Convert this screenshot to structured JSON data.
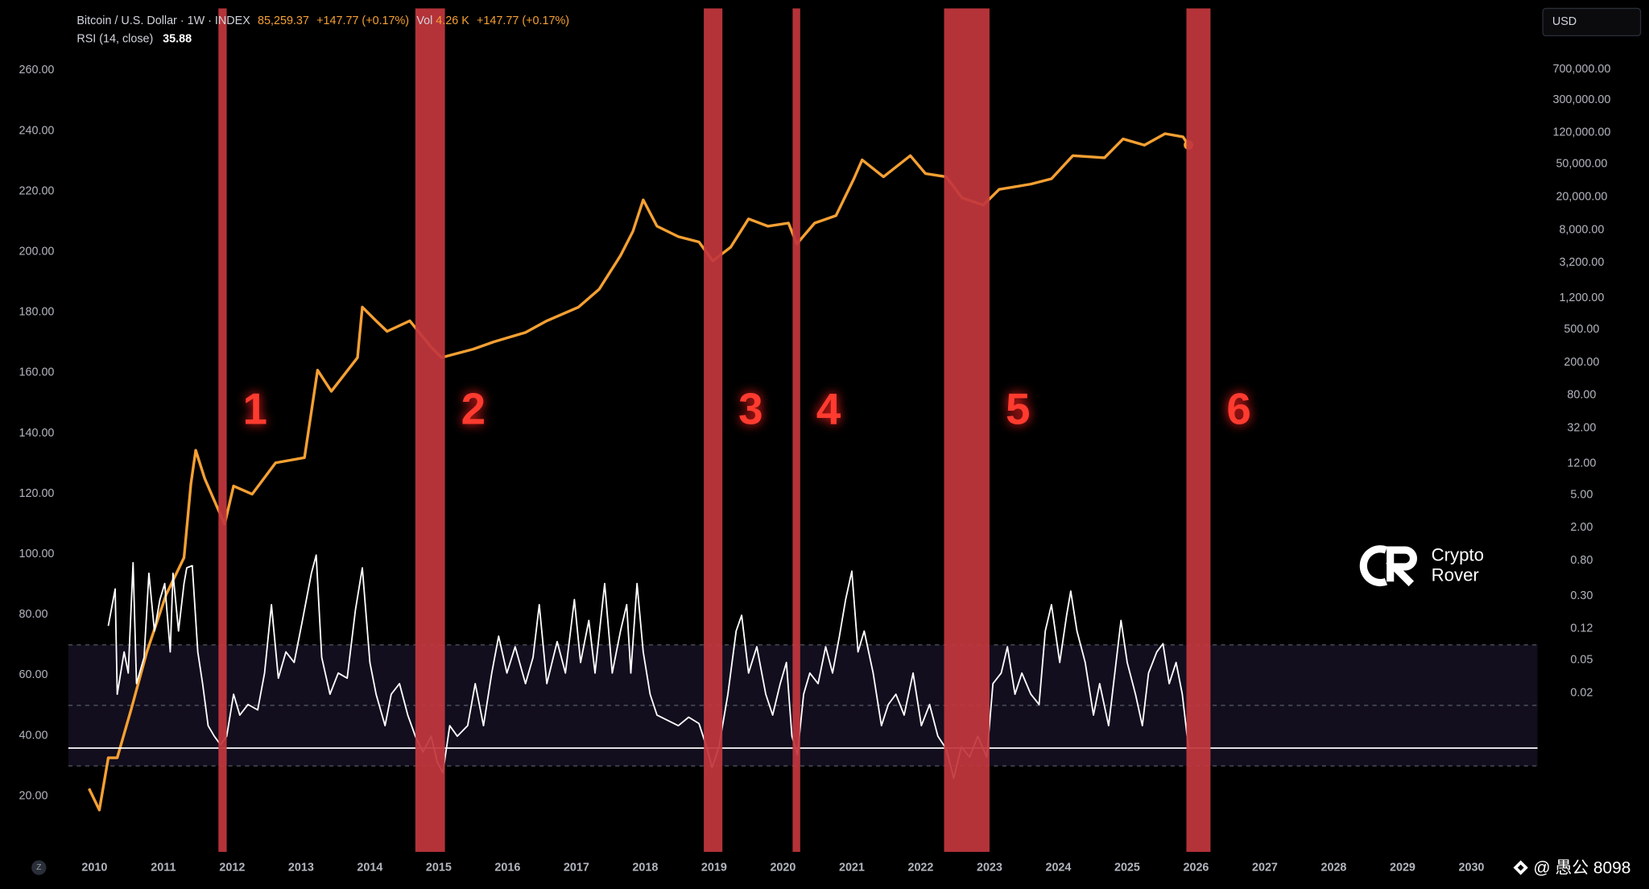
{
  "chart_data": {
    "type": "line",
    "header": {
      "price": "85,259.37",
      "change": "+147.77 (+0.17%)",
      "volume_label": "Vol",
      "volume": "4.26 K",
      "volume_change": "+147.77 (+0.17%)"
    },
    "currency": "USD",
    "logo": [
      "Crypto",
      "Rover"
    ],
    "corner_icon": "Z",
    "watermark": "@ 愚公 8098",
    "xlim": [
      2009.62,
      2030.96
    ],
    "xticks": [
      2010,
      2011,
      2012,
      2013,
      2014,
      2015,
      2016,
      2017,
      2018,
      2019,
      2020,
      2021,
      2022,
      2023,
      2024,
      2025,
      2026,
      2027,
      2028,
      2029,
      2030
    ],
    "ylim": [
      1.56,
      280.5
    ],
    "yticks": [
      {
        "value": 20,
        "label": "20.00"
      },
      {
        "value": 40,
        "label": "40.00"
      },
      {
        "value": 60,
        "label": "60.00"
      },
      {
        "value": 80,
        "label": "80.00"
      },
      {
        "value": 100,
        "label": "100.00"
      },
      {
        "value": 120,
        "label": "120.00"
      },
      {
        "value": 140,
        "label": "140.00"
      },
      {
        "value": 160,
        "label": "160.00"
      },
      {
        "value": 180,
        "label": "180.00"
      },
      {
        "value": 200,
        "label": "200.00"
      },
      {
        "value": 220,
        "label": "220.00"
      },
      {
        "value": 240,
        "label": "240.00"
      },
      {
        "value": 260,
        "label": "260.00"
      }
    ],
    "y2log": true,
    "y2lim": [
      0.00024,
      3830000
    ],
    "y2ticks": [
      {
        "value": 700000,
        "label": "700,000.00"
      },
      {
        "value": 300000,
        "label": "300,000.00"
      },
      {
        "value": 120000,
        "label": "120,000.00"
      },
      {
        "value": 50000,
        "label": "50,000.00"
      },
      {
        "value": 20000,
        "label": "20,000.00"
      },
      {
        "value": 8000,
        "label": "8,000.00"
      },
      {
        "value": 3200,
        "label": "3,200.00"
      },
      {
        "value": 1200,
        "label": "1,200.00"
      },
      {
        "value": 500,
        "label": "500.00"
      },
      {
        "value": 200,
        "label": "200.00"
      },
      {
        "value": 80,
        "label": "80.00"
      },
      {
        "value": 32,
        "label": "32.00"
      },
      {
        "value": 12,
        "label": "12.00"
      },
      {
        "value": 5,
        "label": "5.00"
      },
      {
        "value": 2,
        "label": "2.00"
      },
      {
        "value": 0.8,
        "label": "0.80"
      },
      {
        "value": 0.3,
        "label": "0.30"
      },
      {
        "value": 0.12,
        "label": "0.12"
      },
      {
        "value": 0.05,
        "label": "0.05"
      },
      {
        "value": 0.02,
        "label": "0.02"
      }
    ],
    "rsi_levels": [
      70,
      50,
      30
    ],
    "bands": [
      {
        "label": "1",
        "x": [
          2011.8,
          2011.92
        ]
      },
      {
        "label": "2",
        "x": [
          2014.66,
          2015.09
        ]
      },
      {
        "label": "3",
        "x": [
          2018.85,
          2019.12
        ]
      },
      {
        "label": "4",
        "x": [
          2020.14,
          2020.25
        ]
      },
      {
        "label": "5",
        "x": [
          2022.34,
          2023.0
        ]
      },
      {
        "label": "6",
        "x": [
          2025.86,
          2026.21
        ]
      }
    ],
    "series": [
      {
        "name": "Bitcoin / U.S. Dollar · 1W · INDEX",
        "color": "#f5a033",
        "axis": "y2",
        "x": [
          2009.92,
          2010.07,
          2010.2,
          2010.33,
          2010.53,
          2010.76,
          2011.04,
          2011.3,
          2011.4,
          2011.47,
          2011.6,
          2011.89,
          2012.02,
          2012.29,
          2012.63,
          2013.05,
          2013.24,
          2013.44,
          2013.82,
          2013.89,
          2014.09,
          2014.25,
          2014.58,
          2014.89,
          2015.04,
          2015.5,
          2015.8,
          2016.26,
          2016.57,
          2017.03,
          2017.33,
          2017.64,
          2017.82,
          2017.97,
          2018.17,
          2018.48,
          2018.78,
          2018.98,
          2019.24,
          2019.5,
          2019.78,
          2020.08,
          2020.2,
          2020.46,
          2020.77,
          2021.03,
          2021.15,
          2021.46,
          2021.85,
          2022.07,
          2022.37,
          2022.6,
          2022.91,
          2023.14,
          2023.6,
          2023.9,
          2024.21,
          2024.67,
          2024.94,
          2025.25,
          2025.55,
          2025.81,
          2025.89
        ],
        "values": [
          0.0014,
          0.00077,
          0.0033,
          0.0033,
          0.0125,
          0.063,
          0.31,
          0.87,
          6.8,
          17.3,
          7.9,
          2.2,
          6.4,
          5.1,
          12.2,
          14.1,
          161,
          89.5,
          229,
          933,
          637,
          475,
          637,
          306,
          229,
          289,
          355,
          461,
          637,
          933,
          1535,
          3917,
          7690,
          18500,
          8890,
          6640,
          5730,
          3380,
          4950,
          10900,
          8890,
          9700,
          5410,
          9700,
          11940,
          33300,
          56400,
          35200,
          63400,
          38500,
          35200,
          19600,
          16000,
          24800,
          28700,
          33300,
          63400,
          59700,
          101000,
          84900,
          117000,
          107000,
          85259.37
        ]
      },
      {
        "name": "RSI (14, close)",
        "color": "#ffffff",
        "x": [
          2010.2,
          2010.3,
          2010.33,
          2010.43,
          2010.49,
          2010.56,
          2010.61,
          2010.72,
          2010.79,
          2010.87,
          2010.95,
          2011.02,
          2011.1,
          2011.14,
          2011.22,
          2011.3,
          2011.34,
          2011.42,
          2011.5,
          2011.57,
          2011.65,
          2011.74,
          2011.83,
          2011.92,
          2012.02,
          2012.11,
          2012.23,
          2012.37,
          2012.47,
          2012.57,
          2012.67,
          2012.78,
          2012.9,
          2013.02,
          2013.15,
          2013.22,
          2013.3,
          2013.42,
          2013.54,
          2013.67,
          2013.79,
          2013.89,
          2014.0,
          2014.09,
          2014.22,
          2014.31,
          2014.43,
          2014.55,
          2014.66,
          2014.77,
          2014.89,
          2014.98,
          2015.06,
          2015.16,
          2015.27,
          2015.42,
          2015.53,
          2015.65,
          2015.77,
          2015.87,
          2015.99,
          2016.11,
          2016.26,
          2016.37,
          2016.46,
          2016.57,
          2016.72,
          2016.84,
          2016.97,
          2017.06,
          2017.18,
          2017.27,
          2017.41,
          2017.52,
          2017.64,
          2017.73,
          2017.79,
          2017.88,
          2017.97,
          2018.07,
          2018.17,
          2018.33,
          2018.48,
          2018.63,
          2018.78,
          2018.89,
          2018.97,
          2019.07,
          2019.2,
          2019.32,
          2019.4,
          2019.5,
          2019.62,
          2019.75,
          2019.85,
          2019.96,
          2020.05,
          2020.13,
          2020.21,
          2020.3,
          2020.39,
          2020.51,
          2020.62,
          2020.72,
          2020.82,
          2020.91,
          2021.0,
          2021.09,
          2021.18,
          2021.31,
          2021.43,
          2021.53,
          2021.64,
          2021.76,
          2021.89,
          2022.01,
          2022.13,
          2022.25,
          2022.37,
          2022.48,
          2022.59,
          2022.71,
          2022.83,
          2022.96,
          2023.05,
          2023.17,
          2023.26,
          2023.37,
          2023.47,
          2023.6,
          2023.72,
          2023.81,
          2023.9,
          2024.02,
          2024.12,
          2024.18,
          2024.27,
          2024.39,
          2024.51,
          2024.6,
          2024.73,
          2024.82,
          2024.91,
          2025.0,
          2025.12,
          2025.22,
          2025.31,
          2025.43,
          2025.52,
          2025.61,
          2025.71,
          2025.8,
          2025.89
        ],
        "values": [
          76.3,
          88.5,
          53.7,
          67.7,
          60.7,
          97.2,
          57.2,
          65.9,
          93.7,
          74.6,
          85,
          90.3,
          67.7,
          93.7,
          74.6,
          90.3,
          95.5,
          96.2,
          67.7,
          57.2,
          43.3,
          39.8,
          37,
          39.8,
          53.7,
          46.8,
          50.3,
          48.5,
          60.7,
          83.3,
          59,
          67.7,
          64.2,
          78.1,
          93.7,
          99.7,
          65.9,
          53.7,
          60.7,
          59,
          81.6,
          95.5,
          64.2,
          53.7,
          43.3,
          53.7,
          57.2,
          46.8,
          39.8,
          34.6,
          39.8,
          31.1,
          27.7,
          43.3,
          39.8,
          43.3,
          57.2,
          43.3,
          60.7,
          72.9,
          60.7,
          69.4,
          57.2,
          65.9,
          83.3,
          57.2,
          71.1,
          60.7,
          85,
          64.2,
          78.1,
          60.7,
          90.3,
          60.7,
          74.6,
          83.3,
          60.7,
          90.3,
          67.7,
          53.7,
          46.8,
          45,
          43.3,
          46.1,
          44,
          36.3,
          29.4,
          36.3,
          53.7,
          74.6,
          79.8,
          60.7,
          69.4,
          53.7,
          46.8,
          57.2,
          64.2,
          39.8,
          33.6,
          53.7,
          60.7,
          57.2,
          69.4,
          60.7,
          72.9,
          85,
          94.4,
          67.7,
          74.6,
          60.7,
          43.3,
          50.3,
          53.7,
          46.8,
          60.7,
          43.3,
          50.3,
          39.8,
          35.7,
          25.9,
          36.3,
          32.9,
          39.8,
          32.9,
          57.2,
          60.7,
          69.4,
          53.7,
          60.7,
          53.7,
          50.3,
          74.6,
          83.3,
          64.2,
          79.8,
          87.8,
          74.6,
          64.2,
          46.8,
          57.2,
          43.3,
          60.7,
          78.1,
          64.2,
          53.7,
          43.3,
          60.7,
          67.7,
          70.4,
          57.2,
          64.2,
          53.7,
          35.88
        ]
      }
    ]
  }
}
